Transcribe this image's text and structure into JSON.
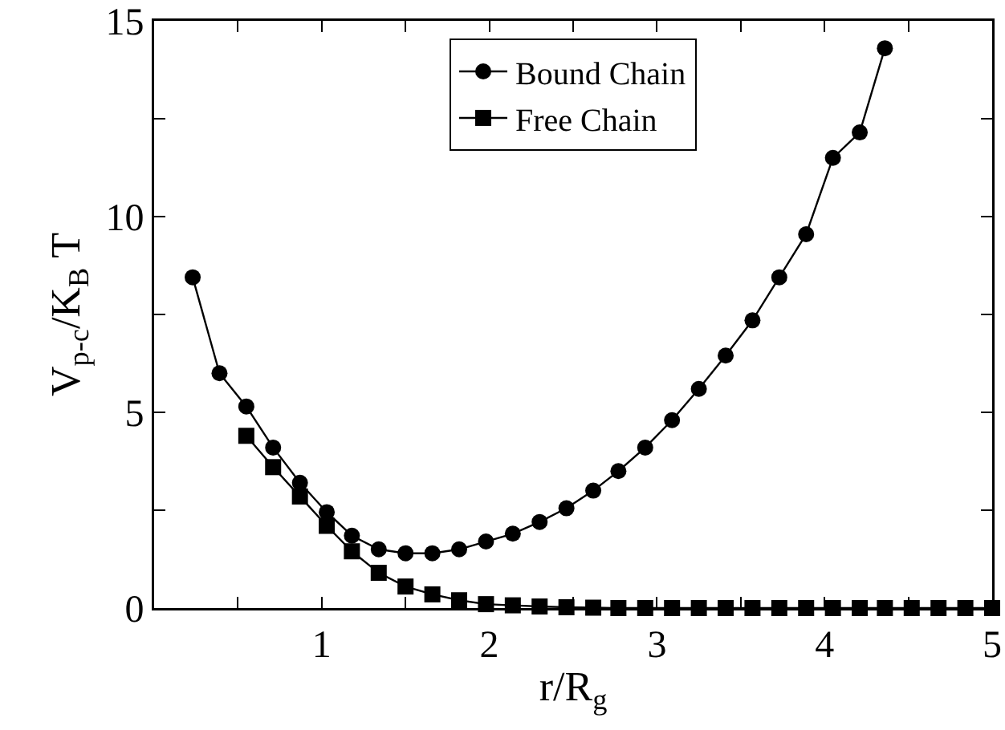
{
  "chart_data": {
    "type": "line",
    "xlabel": "r/R$_{g}$",
    "ylabel": "V$_{p-c}$/K$_{B}$ T",
    "xlim": [
      0,
      5
    ],
    "xticks": [
      {
        "value": 0.5,
        "label": null
      },
      1,
      {
        "value": 1.5,
        "label": null
      },
      2,
      {
        "value": 2.5,
        "label": null
      },
      3,
      {
        "value": 3.5,
        "label": null
      },
      4,
      {
        "value": 4.5,
        "label": null
      },
      5
    ],
    "ylim": [
      0,
      15
    ],
    "yticks": [
      0,
      {
        "value": 2.5,
        "label": null
      },
      5,
      {
        "value": 7.5,
        "label": null
      },
      10,
      {
        "value": 12.5,
        "label": null
      },
      15
    ],
    "grid": false,
    "legend": "top",
    "line_style": "solid",
    "series": [
      {
        "name": "Bound Chain",
        "color": "#000000",
        "marker": "circle",
        "x": [
          0.23,
          0.39,
          0.55,
          0.71,
          0.87,
          1.03,
          1.18,
          1.34,
          1.5,
          1.66,
          1.82,
          1.98,
          2.14,
          2.3,
          2.46,
          2.62,
          2.77,
          2.93,
          3.09,
          3.25,
          3.41,
          3.57,
          3.73,
          3.89,
          4.05,
          4.21,
          4.36
        ],
        "values": [
          8.45,
          6.0,
          5.15,
          4.1,
          3.2,
          2.45,
          1.85,
          1.5,
          1.4,
          1.4,
          1.5,
          1.7,
          1.9,
          2.2,
          2.55,
          3.0,
          3.5,
          4.1,
          4.8,
          5.6,
          6.45,
          7.35,
          8.45,
          9.55,
          11.5,
          12.15,
          14.3
        ]
      },
      {
        "name": "Free Chain",
        "color": "#000000",
        "marker": "square",
        "x": [
          0.55,
          0.71,
          0.87,
          1.03,
          1.18,
          1.34,
          1.5,
          1.66,
          1.82,
          1.98,
          2.14,
          2.3,
          2.46,
          2.62,
          2.77,
          2.93,
          3.09,
          3.25,
          3.41,
          3.57,
          3.73,
          3.89,
          4.05,
          4.21,
          4.36,
          4.52,
          4.68,
          4.84,
          5.0
        ],
        "values": [
          4.4,
          3.6,
          2.85,
          2.1,
          1.45,
          0.9,
          0.55,
          0.35,
          0.2,
          0.1,
          0.07,
          0.04,
          0.02,
          0.01,
          0,
          0,
          0,
          0,
          0,
          0,
          0,
          0,
          0,
          0,
          0,
          0,
          0,
          0,
          0
        ]
      }
    ]
  }
}
